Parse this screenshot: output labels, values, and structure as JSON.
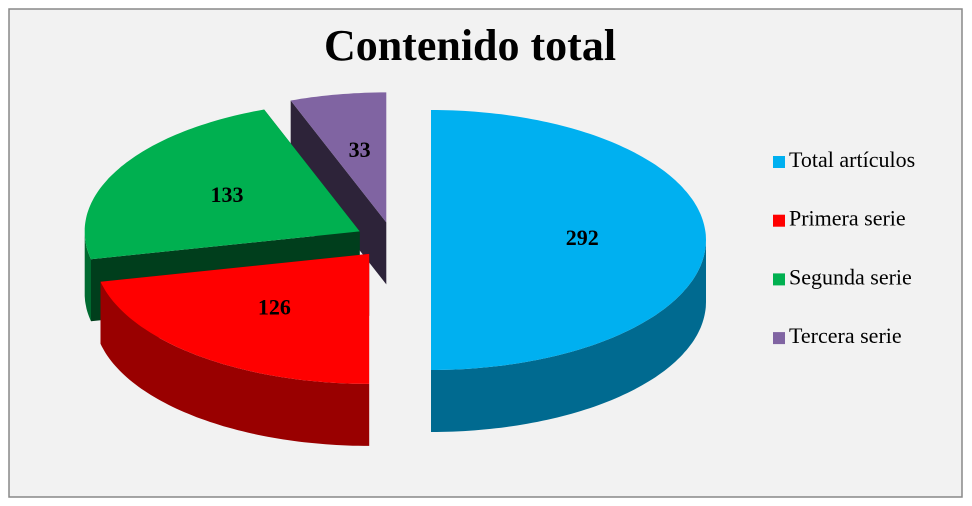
{
  "chart_data": {
    "type": "pie",
    "title": "Contenido total",
    "categories": [
      "Total artículos",
      "Primera serie",
      "Segunda serie",
      "Tercera serie"
    ],
    "values": [
      292,
      126,
      133,
      33
    ],
    "colors": [
      "#00b0f0",
      "#ff0000",
      "#00b050",
      "#8064a2"
    ],
    "legend": "right"
  }
}
